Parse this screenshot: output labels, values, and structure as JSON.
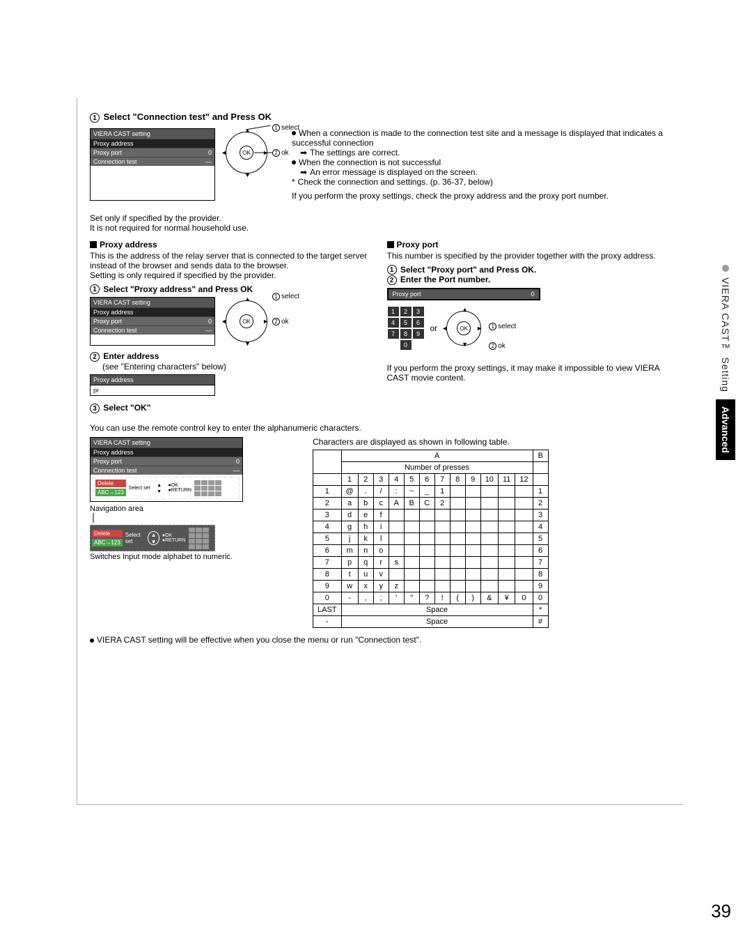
{
  "page_number": "39",
  "side_tab": {
    "upper": "VIERA CAST™ Setting",
    "lower": "Advanced"
  },
  "step1": {
    "title": "Select \"Connection test\" and Press OK",
    "settings": {
      "header": "VIERA CAST setting",
      "rows": [
        {
          "label": "Proxy address",
          "value": ""
        },
        {
          "label": "Proxy port",
          "value": "0"
        },
        {
          "label": "Connection test",
          "value": "—"
        }
      ]
    },
    "ok_labels": {
      "select": "select",
      "ok": "ok"
    },
    "notes": [
      "When a connection is made to the connection test site and a message is displayed that indicates a successful connection",
      "The settings are correct.",
      "When the connection is not successful",
      "An error message is displayed on the screen.",
      "Check the connection and settings. (p. 36-37, below)",
      "If you perform the proxy settings, check the proxy address and the proxy port number."
    ]
  },
  "provider_note1": "Set only if specified by the provider.",
  "provider_note2": "It is not required for normal household use.",
  "proxy_address": {
    "heading": "Proxy address",
    "desc": "This is the address of the relay server that is connected to the target server instead of the browser and sends data to the browser.\nSetting is only required if specified by the provider.",
    "step1": "Select \"Proxy address\" and Press OK",
    "step2": "Enter address",
    "step2_sub": "(see \"Entering characters\" below)",
    "step3": "Select \"OK\"",
    "input_header": "Proxy address",
    "input_value": "pr"
  },
  "proxy_port": {
    "heading": "Proxy port",
    "desc": "This number is specified by the provider together with the proxy address.",
    "step1": "Select \"Proxy port\" and Press OK.",
    "step2": "Enter the Port number.",
    "box_label": "Proxy port",
    "box_value": "0",
    "or": "or",
    "warn": "If you perform the proxy settings, it may make it impossible to view VIERA CAST movie content.",
    "keypad": [
      "1",
      "2",
      "3",
      "4",
      "5",
      "6",
      "7",
      "8",
      "9",
      "0"
    ]
  },
  "entering": {
    "intro": "You can use the remote control key to enter the alphanumeric characters.",
    "nav_caption": "Navigation area",
    "nav_note": "Switches Input mode alphabet to numeric.",
    "nav_delete": "Delete",
    "nav_abc": "ABC→123",
    "nav_select": "Select set",
    "nav_ok": "OK",
    "nav_return": "RETURN",
    "table_caption": "Characters are displayed as shown in following table."
  },
  "char_table": {
    "col_a": "A",
    "col_b": "B",
    "header": "Number of presses",
    "cols": [
      "1",
      "2",
      "3",
      "4",
      "5",
      "6",
      "7",
      "8",
      "9",
      "10",
      "11",
      "12"
    ],
    "rows": [
      {
        "key": "1",
        "cells": [
          "@",
          ".",
          "/",
          ":",
          "~",
          "_",
          "1",
          "",
          "",
          "",
          "",
          ""
        ],
        "b": "1"
      },
      {
        "key": "2",
        "cells": [
          "a",
          "b",
          "c",
          "A",
          "B",
          "C",
          "2",
          "",
          "",
          "",
          "",
          ""
        ],
        "b": "2"
      },
      {
        "key": "3",
        "cells": [
          "d",
          "e",
          "f",
          "",
          "",
          "",
          "",
          "",
          "",
          "",
          "",
          ""
        ],
        "b": "3"
      },
      {
        "key": "4",
        "cells": [
          "g",
          "h",
          "i",
          "",
          "",
          "",
          "",
          "",
          "",
          "",
          "",
          ""
        ],
        "b": "4"
      },
      {
        "key": "5",
        "cells": [
          "j",
          "k",
          "l",
          "",
          "",
          "",
          "",
          "",
          "",
          "",
          "",
          ""
        ],
        "b": "5"
      },
      {
        "key": "6",
        "cells": [
          "m",
          "n",
          "o",
          "",
          "",
          "",
          "",
          "",
          "",
          "",
          "",
          ""
        ],
        "b": "6"
      },
      {
        "key": "7",
        "cells": [
          "p",
          "q",
          "r",
          "s",
          "",
          "",
          "",
          "",
          "",
          "",
          "",
          ""
        ],
        "b": "7"
      },
      {
        "key": "8",
        "cells": [
          "t",
          "u",
          "v",
          "",
          "",
          "",
          "",
          "",
          "",
          "",
          "",
          ""
        ],
        "b": "8"
      },
      {
        "key": "9",
        "cells": [
          "w",
          "x",
          "y",
          "z",
          "",
          "",
          "",
          "",
          "",
          "",
          "",
          ""
        ],
        "b": "9"
      },
      {
        "key": "0",
        "cells": [
          "-",
          ",",
          ";",
          "'",
          "\"",
          "?",
          "!",
          "(",
          ")",
          "&",
          "¥",
          "0"
        ],
        "b": "0"
      },
      {
        "key": "LAST",
        "space": "Space",
        "b": "*"
      },
      {
        "key": "-",
        "space": "Space",
        "b": "#"
      }
    ]
  },
  "footer": "VIERA CAST setting will be effective when you close the menu or run \"Connection test\"."
}
